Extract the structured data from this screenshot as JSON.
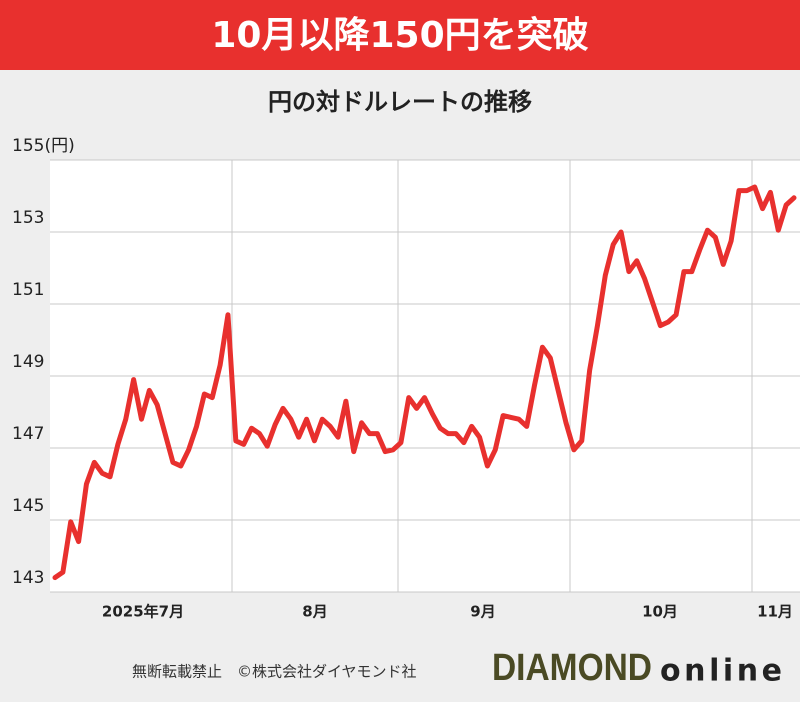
{
  "chart_data": {
    "type": "line",
    "title": "10月以降150円を突破",
    "subtitle": "円の対ドルレートの推移",
    "x_labels": [
      "2025年7月",
      "8月",
      "9月",
      "10月",
      "11月"
    ],
    "series": [
      {
        "name": "円の対ドルレート",
        "color": "#e8302e",
        "values": [
          143.4,
          143.55,
          144.95,
          144.4,
          146,
          146.6,
          146.3,
          146.2,
          147.1,
          147.8,
          148.9,
          147.8,
          148.6,
          148.2,
          147.4,
          146.6,
          146.5,
          146.95,
          147.6,
          148.5,
          148.4,
          149.3,
          150.7,
          147.2,
          147.1,
          147.55,
          147.4,
          147.05,
          147.65,
          148.1,
          147.8,
          147.3,
          147.8,
          147.2,
          147.8,
          147.6,
          147.3,
          148.3,
          146.9,
          147.7,
          147.4,
          147.4,
          146.9,
          146.95,
          147.15,
          148.4,
          148.1,
          148.4,
          147.95,
          147.55,
          147.4,
          147.4,
          147.15,
          147.6,
          147.3,
          146.5,
          146.95,
          147.9,
          147.85,
          147.8,
          147.6,
          148.75,
          149.8,
          149.5,
          148.6,
          147.7,
          146.95,
          147.2,
          149.15,
          150.4,
          151.8,
          152.65,
          153,
          151.9,
          152.2,
          151.7,
          151.05,
          150.4,
          150.5,
          150.7,
          151.9,
          151.9,
          152.5,
          153.05,
          152.85,
          152.1,
          152.75,
          154.15,
          154.15,
          154.25,
          153.65,
          154.1,
          153.05,
          153.75,
          153.95
        ]
      }
    ],
    "ylim": [
      143,
      155
    ],
    "yticks": [
      143,
      145,
      147,
      149,
      151,
      153,
      {
        "value": 155,
        "label": "155(円)"
      }
    ],
    "grid": true,
    "footer": "無断転載禁止　©株式会社ダイヤモンド社",
    "logo_main": "DIAMOND",
    "logo_sub": "online"
  }
}
